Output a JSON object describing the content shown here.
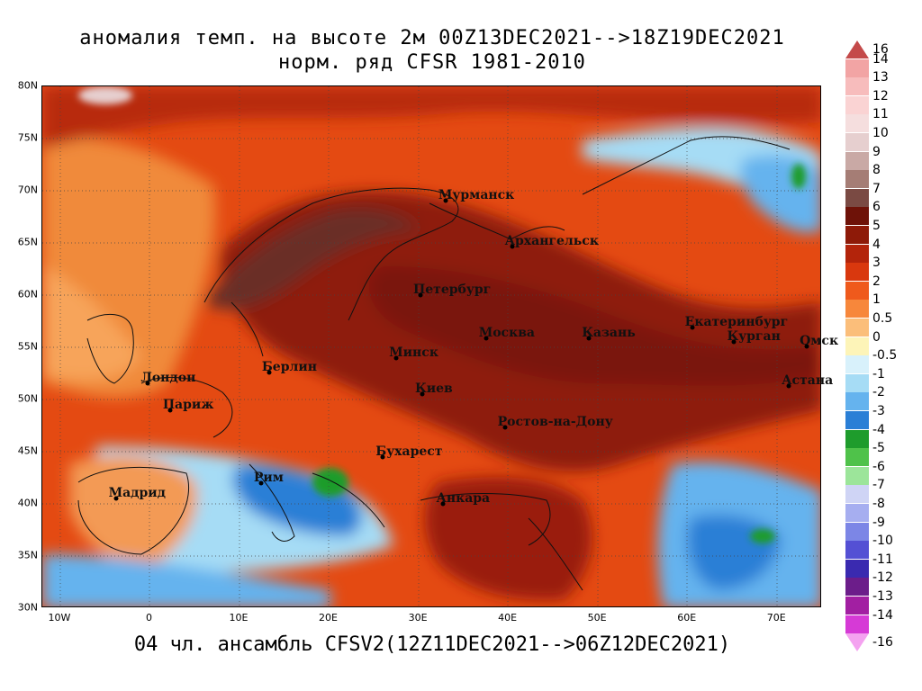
{
  "title_line1": "аномалия темп. на высоте 2м 00Z13DEC2021-->18Z19DEC2021",
  "title_line2": "норм. ряд CFSR 1981-2010",
  "footer": "04 чл. ансамбль CFSV2(12Z11DEC2021-->06Z12DEC2021)",
  "lat_labels": [
    "80N",
    "75N",
    "70N",
    "65N",
    "60N",
    "55N",
    "50N",
    "45N",
    "40N",
    "35N",
    "30N"
  ],
  "lon_labels": [
    "10W",
    "0",
    "10E",
    "20E",
    "30E",
    "40E",
    "50E",
    "60E",
    "70E"
  ],
  "cities": [
    {
      "name": "Мурманск",
      "lon": 33.1,
      "lat": 68.97
    },
    {
      "name": "Архангельск",
      "lon": 40.5,
      "lat": 64.54
    },
    {
      "name": "Петербург",
      "lon": 30.3,
      "lat": 59.94
    },
    {
      "name": "Москва",
      "lon": 37.6,
      "lat": 55.75
    },
    {
      "name": "Казань",
      "lon": 49.1,
      "lat": 55.8
    },
    {
      "name": "Екатеринбург",
      "lon": 60.6,
      "lat": 56.84
    },
    {
      "name": "Курган",
      "lon": 65.3,
      "lat": 55.45
    },
    {
      "name": "Омск",
      "lon": 73.4,
      "lat": 54.99
    },
    {
      "name": "Астана",
      "lon": 71.4,
      "lat": 51.17
    },
    {
      "name": "Минск",
      "lon": 27.6,
      "lat": 53.9
    },
    {
      "name": "Киев",
      "lon": 30.5,
      "lat": 50.45
    },
    {
      "name": "Берлин",
      "lon": 13.4,
      "lat": 52.52
    },
    {
      "name": "Лондон",
      "lon": -0.1,
      "lat": 51.5
    },
    {
      "name": "Париж",
      "lon": 2.35,
      "lat": 48.86
    },
    {
      "name": "Ростов-на-Дону",
      "lon": 39.7,
      "lat": 47.23
    },
    {
      "name": "Бухарест",
      "lon": 26.1,
      "lat": 44.43
    },
    {
      "name": "Рим",
      "lon": 12.5,
      "lat": 41.9
    },
    {
      "name": "Мадрид",
      "lon": -3.7,
      "lat": 40.42
    },
    {
      "name": "Анкара",
      "lon": 32.85,
      "lat": 39.93
    }
  ],
  "legend": [
    {
      "label": "16",
      "color": "#c44a4a"
    },
    {
      "label": "14",
      "color": "#f2a4a4"
    },
    {
      "label": "13",
      "color": "#f7bcbc"
    },
    {
      "label": "12",
      "color": "#fad3d3"
    },
    {
      "label": "11",
      "color": "#f5dede"
    },
    {
      "label": "10",
      "color": "#e6cfcf"
    },
    {
      "label": "9",
      "color": "#c9a9a5"
    },
    {
      "label": "8",
      "color": "#a57d75"
    },
    {
      "label": "7",
      "color": "#7a4a43"
    },
    {
      "label": "6",
      "color": "#6e1208"
    },
    {
      "label": "5",
      "color": "#8e1a08"
    },
    {
      "label": "4",
      "color": "#b3240b"
    },
    {
      "label": "3",
      "color": "#d9380e"
    },
    {
      "label": "2",
      "color": "#ef5a1c"
    },
    {
      "label": "1",
      "color": "#f7873b"
    },
    {
      "label": "0.5",
      "color": "#fbbe7a"
    },
    {
      "label": "0",
      "color": "#fdf4b8"
    },
    {
      "label": "-0.5",
      "color": "#d8f1fb"
    },
    {
      "label": "-1",
      "color": "#a6dcf5"
    },
    {
      "label": "-2",
      "color": "#65b3ee"
    },
    {
      "label": "-3",
      "color": "#2a7fd6"
    },
    {
      "label": "-4",
      "color": "#1e9c2c"
    },
    {
      "label": "-5",
      "color": "#4fc24a"
    },
    {
      "label": "-6",
      "color": "#9ce59a"
    },
    {
      "label": "-7",
      "color": "#cfd4f5"
    },
    {
      "label": "-8",
      "color": "#a6aef0"
    },
    {
      "label": "-9",
      "color": "#7c86e6"
    },
    {
      "label": "-10",
      "color": "#5450d4"
    },
    {
      "label": "-11",
      "color": "#3a2ab0"
    },
    {
      "label": "-12",
      "color": "#6c1d8a"
    },
    {
      "label": "-13",
      "color": "#a21fa2"
    },
    {
      "label": "-14",
      "color": "#d63ad6"
    },
    {
      "label": "-16",
      "color": "#f4a2f0"
    }
  ]
}
